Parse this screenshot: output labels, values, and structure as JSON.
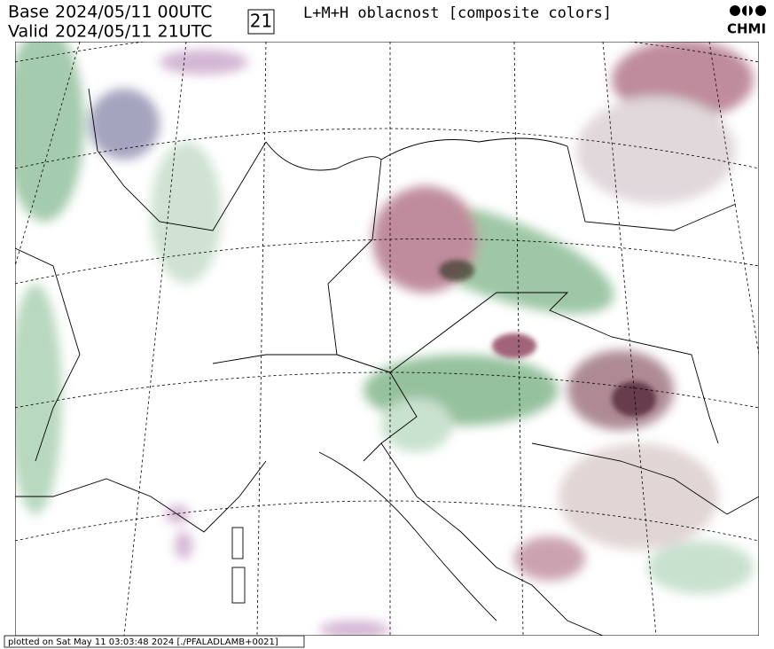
{
  "header": {
    "base_label": "Base",
    "base_time": "2024/05/11 00UTC",
    "valid_label": "Valid",
    "valid_time": "2024/05/11 21UTC",
    "forecast_hour": "21",
    "title": "L+M+H oblacnost [composite colors]"
  },
  "logo": {
    "text": "CHMI"
  },
  "footer": {
    "text": "plotted on Sat May 11 03:03:48 2024 [./PFALADLAMB+0021]"
  }
}
